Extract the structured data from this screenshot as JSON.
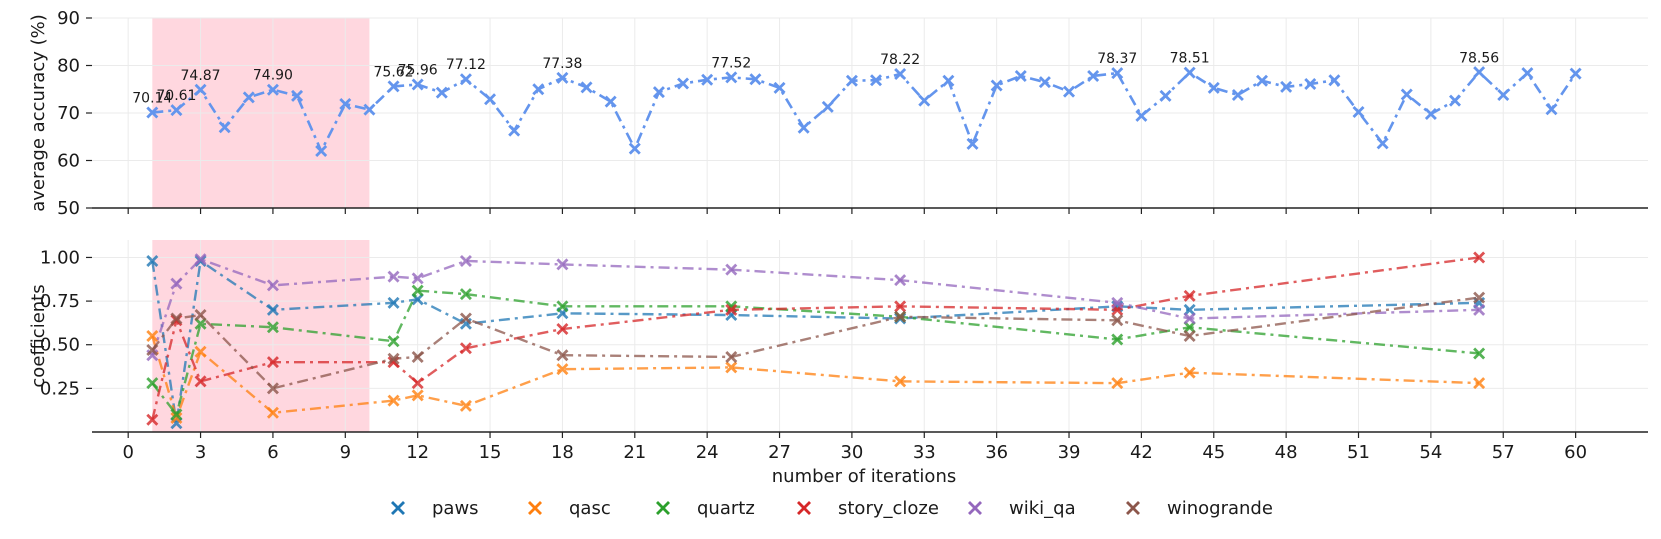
{
  "chart_data": [
    {
      "type": "line",
      "panel": "top",
      "ylabel": "average accuracy (%)",
      "ylim": [
        50,
        90
      ],
      "yticks": [
        50,
        60,
        70,
        80,
        90
      ],
      "ytick_labels": [
        "50",
        "60",
        "70",
        "80",
        "90"
      ],
      "xlim": [
        -1.5,
        63
      ],
      "grid": true,
      "highlight_range": [
        1,
        10
      ],
      "highlight_color": "#ffd7df",
      "series": [
        {
          "name": "average accuracy",
          "color": "#6495ed",
          "x": [
            1,
            2,
            3,
            4,
            5,
            6,
            7,
            8,
            9,
            10,
            11,
            12,
            13,
            14,
            15,
            16,
            17,
            18,
            19,
            20,
            21,
            22,
            23,
            24,
            25,
            26,
            27,
            28,
            29,
            30,
            31,
            32,
            33,
            34,
            35,
            36,
            37,
            38,
            39,
            40,
            41,
            42,
            43,
            44,
            45,
            46,
            47,
            48,
            49,
            50,
            51,
            52,
            53,
            54,
            55,
            56,
            57,
            58,
            59,
            60
          ],
          "values": [
            70.1,
            70.6,
            74.9,
            67.0,
            73.3,
            74.9,
            73.6,
            62.0,
            71.9,
            70.7,
            75.6,
            76.0,
            74.3,
            77.1,
            72.9,
            66.3,
            75.0,
            77.4,
            75.4,
            72.4,
            62.5,
            74.4,
            76.2,
            77.0,
            77.5,
            77.1,
            75.3,
            66.9,
            71.3,
            76.8,
            76.9,
            78.2,
            72.6,
            76.8,
            63.5,
            75.8,
            77.8,
            76.5,
            74.5,
            77.8,
            78.4,
            69.4,
            73.6,
            78.5,
            75.3,
            73.8,
            76.8,
            75.5,
            76.1,
            76.9,
            70.2,
            63.6,
            73.9,
            69.8,
            72.6,
            78.6,
            73.8,
            78.4,
            70.8,
            78.3
          ]
        }
      ],
      "annotations": [
        {
          "x": 1,
          "y": 70.14,
          "text": "70.14"
        },
        {
          "x": 2,
          "y": 70.61,
          "text": "70.61"
        },
        {
          "x": 3,
          "y": 74.87,
          "text": "74.87"
        },
        {
          "x": 6,
          "y": 74.9,
          "text": "74.90"
        },
        {
          "x": 11,
          "y": 75.62,
          "text": "75.62"
        },
        {
          "x": 12,
          "y": 75.96,
          "text": "75.96"
        },
        {
          "x": 14,
          "y": 77.12,
          "text": "77.12"
        },
        {
          "x": 18,
          "y": 77.38,
          "text": "77.38"
        },
        {
          "x": 25,
          "y": 77.52,
          "text": "77.52"
        },
        {
          "x": 32,
          "y": 78.22,
          "text": "78.22"
        },
        {
          "x": 41,
          "y": 78.37,
          "text": "78.37"
        },
        {
          "x": 44,
          "y": 78.51,
          "text": "78.51"
        },
        {
          "x": 56,
          "y": 78.56,
          "text": "78.56"
        }
      ]
    },
    {
      "type": "line",
      "panel": "bottom",
      "xlabel": "number of iterations",
      "ylabel": "coefficients",
      "ylim": [
        0,
        1.1
      ],
      "yticks": [
        0.25,
        0.5,
        0.75,
        1.0
      ],
      "ytick_labels": [
        "0.25",
        "0.50",
        "0.75",
        "1.00"
      ],
      "xlim": [
        -1.5,
        63
      ],
      "xticks": [
        0,
        3,
        6,
        9,
        12,
        15,
        18,
        21,
        24,
        27,
        30,
        33,
        36,
        39,
        42,
        45,
        48,
        51,
        54,
        57,
        60
      ],
      "xtick_labels": [
        "0",
        "3",
        "6",
        "9",
        "12",
        "15",
        "18",
        "21",
        "24",
        "27",
        "30",
        "33",
        "36",
        "39",
        "42",
        "45",
        "48",
        "51",
        "54",
        "57",
        "60"
      ],
      "grid": true,
      "highlight_range": [
        1,
        10
      ],
      "highlight_color": "#ffd7df",
      "x": [
        1,
        2,
        3,
        6,
        11,
        12,
        14,
        18,
        25,
        32,
        41,
        44,
        56
      ],
      "series": [
        {
          "name": "paws",
          "color": "#1f77b4",
          "values": [
            0.98,
            0.05,
            0.98,
            0.7,
            0.74,
            0.76,
            0.62,
            0.68,
            0.67,
            0.65,
            0.72,
            0.7,
            0.74
          ]
        },
        {
          "name": "qasc",
          "color": "#ff7f0e",
          "values": [
            0.55,
            0.08,
            0.46,
            0.11,
            0.18,
            0.21,
            0.15,
            0.36,
            0.37,
            0.29,
            0.28,
            0.34,
            0.28
          ]
        },
        {
          "name": "quartz",
          "color": "#2ca02c",
          "values": [
            0.28,
            0.1,
            0.62,
            0.6,
            0.52,
            0.81,
            0.79,
            0.72,
            0.72,
            0.66,
            0.53,
            0.6,
            0.45
          ]
        },
        {
          "name": "story_cloze",
          "color": "#d62728",
          "values": [
            0.07,
            0.64,
            0.29,
            0.4,
            0.4,
            0.28,
            0.48,
            0.59,
            0.7,
            0.72,
            0.7,
            0.78,
            1.0
          ]
        },
        {
          "name": "wiki_qa",
          "color": "#9467bd",
          "values": [
            0.44,
            0.85,
            0.99,
            0.84,
            0.89,
            0.88,
            0.98,
            0.96,
            0.93,
            0.87,
            0.74,
            0.65,
            0.7
          ]
        },
        {
          "name": "winogrande",
          "color": "#8c564b",
          "values": [
            0.47,
            0.65,
            0.67,
            0.25,
            0.42,
            0.43,
            0.65,
            0.44,
            0.43,
            0.66,
            0.64,
            0.55,
            0.77
          ]
        }
      ],
      "legend_position": "bottom-center"
    }
  ]
}
